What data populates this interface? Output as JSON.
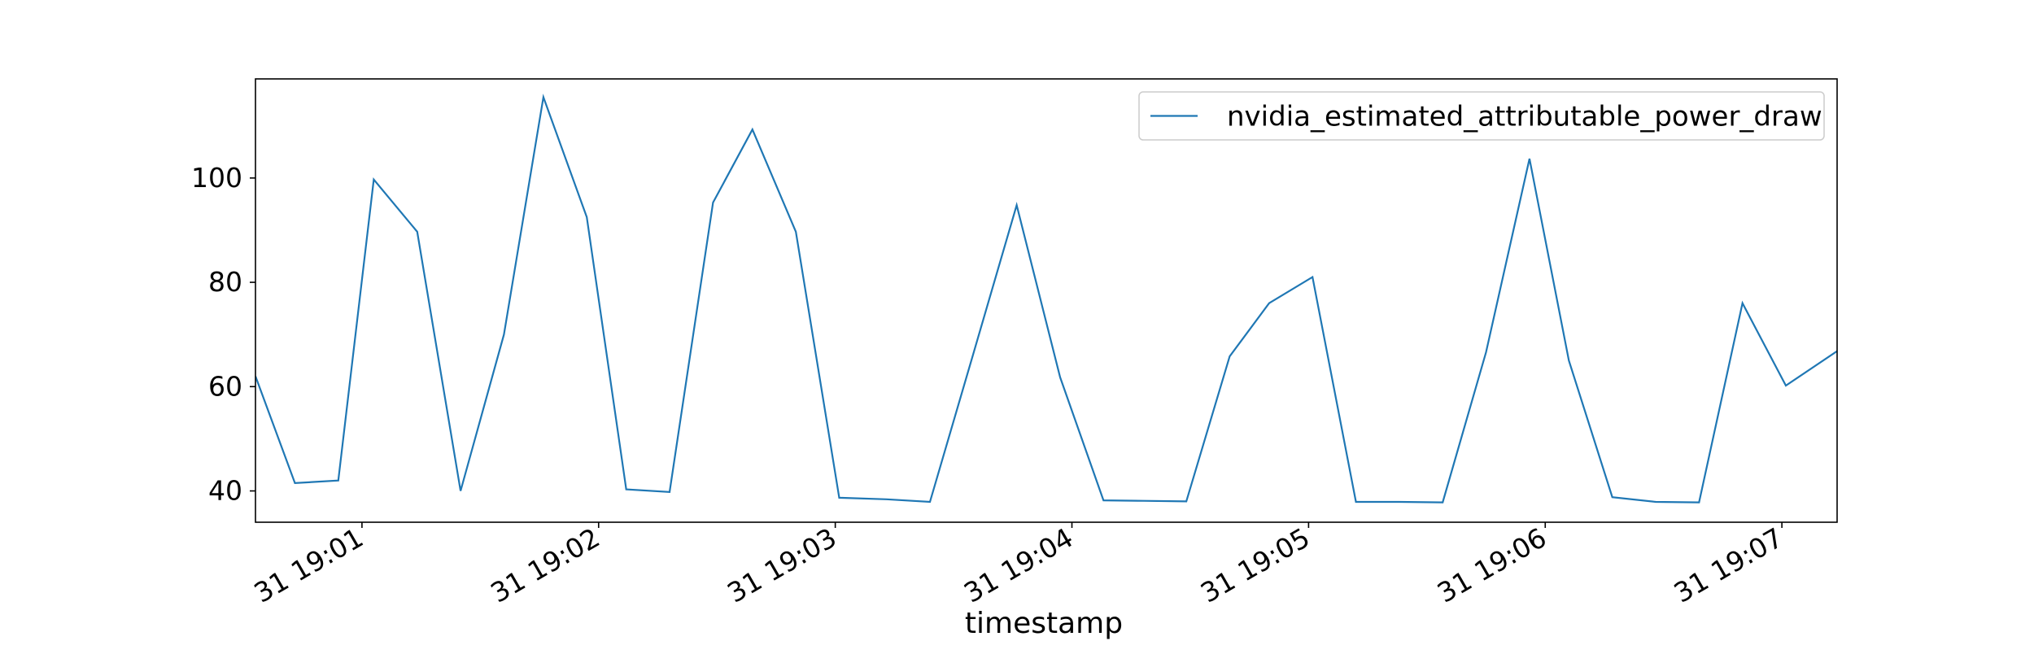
{
  "chart_data": {
    "type": "line",
    "xlabel": "timestamp",
    "ylabel": "",
    "title": "",
    "grid": false,
    "legend_position": "top-right",
    "x_ticks": [
      "31 19:01",
      "31 19:02",
      "31 19:03",
      "31 19:04",
      "31 19:05",
      "31 19:06",
      "31 19:07"
    ],
    "x_range": [
      "19:00:33",
      "19:07:14"
    ],
    "y_ticks": [
      40,
      60,
      80,
      100
    ],
    "ylim": [
      34,
      119
    ],
    "series": [
      {
        "name": "nvidia_estimated_attributable_power_draw",
        "color": "#1f77b4",
        "x": [
          "19:00:33",
          "19:00:43",
          "19:00:54",
          "19:01:03",
          "19:01:14",
          "19:01:25",
          "19:01:36",
          "19:01:46",
          "19:01:57",
          "19:02:07",
          "19:02:18",
          "19:02:29",
          "19:02:39",
          "19:02:50",
          "19:03:01",
          "19:03:13",
          "19:03:24",
          "19:03:35",
          "19:03:46",
          "19:03:57",
          "19:04:08",
          "19:04:18",
          "19:04:29",
          "19:04:40",
          "19:04:50",
          "19:05:01",
          "19:05:12",
          "19:05:23",
          "19:05:34",
          "19:05:45",
          "19:05:56",
          "19:06:06",
          "19:06:17",
          "19:06:28",
          "19:06:39",
          "19:06:50",
          "19:07:01",
          "19:07:14"
        ],
        "y": [
          62,
          41.5,
          42,
          99.7,
          89.7,
          40,
          70,
          115.5,
          92.5,
          40.3,
          39.8,
          95.3,
          109.3,
          89.7,
          38.7,
          38.4,
          37.9,
          66.3,
          94.8,
          61.8,
          38.2,
          38.1,
          38,
          65.8,
          76,
          81,
          37.9,
          37.9,
          37.8,
          66.6,
          103.7,
          65,
          38.8,
          37.9,
          37.8,
          76,
          60.2,
          66.8
        ]
      }
    ]
  }
}
